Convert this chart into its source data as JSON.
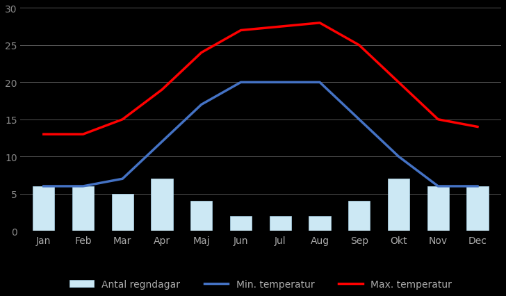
{
  "months": [
    "Jan",
    "Feb",
    "Mar",
    "Apr",
    "Maj",
    "Jun",
    "Jul",
    "Aug",
    "Sep",
    "Okt",
    "Nov",
    "Dec"
  ],
  "rain_days": [
    6,
    6,
    5,
    7,
    4,
    2,
    2,
    2,
    4,
    7,
    6,
    6
  ],
  "min_temp": [
    6,
    6,
    7,
    12,
    17,
    20,
    20,
    20,
    15,
    10,
    6,
    6
  ],
  "max_temp": [
    13,
    13,
    15,
    19,
    24,
    27,
    27.5,
    28,
    25,
    20,
    15,
    14
  ],
  "bar_color": "#cce8f4",
  "bar_edge_color": "#aad4ea",
  "min_temp_color": "#4472c4",
  "max_temp_color": "#ff0000",
  "background_color": "#000000",
  "plot_bg_color": "#000000",
  "grid_color": "#555555",
  "text_color": "#aaaaaa",
  "ytick_color": "#888888",
  "ylim": [
    0,
    30
  ],
  "yticks": [
    0,
    5,
    10,
    15,
    20,
    25,
    30
  ],
  "legend_labels": [
    "Antal regndagar",
    "Min. temperatur",
    "Max. temperatur"
  ],
  "line_width": 2.5,
  "figsize": [
    7.28,
    4.27
  ],
  "dpi": 100
}
